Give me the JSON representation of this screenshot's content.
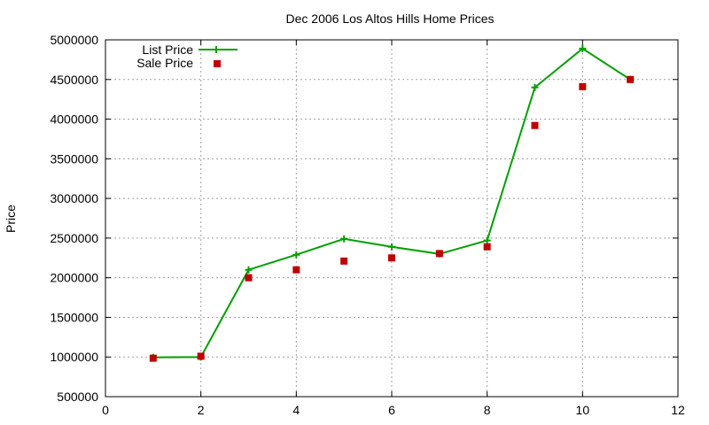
{
  "chart_data": {
    "type": "line",
    "title": "Dec 2006 Los Altos Hills Home Prices",
    "xlabel": "",
    "ylabel": "Price",
    "xlim": [
      0,
      12
    ],
    "ylim": [
      500000,
      5000000
    ],
    "xticks": [
      0,
      2,
      4,
      6,
      8,
      10,
      12
    ],
    "xtick_labels": [
      "0",
      "2",
      "4",
      "6",
      "8",
      "10",
      "12"
    ],
    "yticks": [
      500000,
      1000000,
      1500000,
      2000000,
      2500000,
      3000000,
      3500000,
      4000000,
      4500000,
      5000000
    ],
    "ytick_labels": [
      "500000",
      "1000000",
      "1500000",
      "2000000",
      "2500000",
      "3000000",
      "3500000",
      "4000000",
      "4500000",
      "5000000"
    ],
    "grid": true,
    "legend_position": "top-left",
    "series": [
      {
        "name": "List Price",
        "style": "line+cross",
        "color": "#00a000",
        "x": [
          1,
          2,
          3,
          4,
          5,
          6,
          7,
          8,
          9,
          10,
          11
        ],
        "y": [
          995000,
          1000000,
          2100000,
          2290000,
          2490000,
          2390000,
          2300000,
          2470000,
          4400000,
          4890000,
          4500000
        ]
      },
      {
        "name": "Sale Price",
        "style": "square",
        "color": "#c00000",
        "x": [
          1,
          2,
          3,
          4,
          5,
          6,
          7,
          8,
          9,
          10,
          11
        ],
        "y": [
          985000,
          1010000,
          2000000,
          2100000,
          2210000,
          2250000,
          2305000,
          2390000,
          3920000,
          4410000,
          4500000
        ]
      }
    ]
  }
}
